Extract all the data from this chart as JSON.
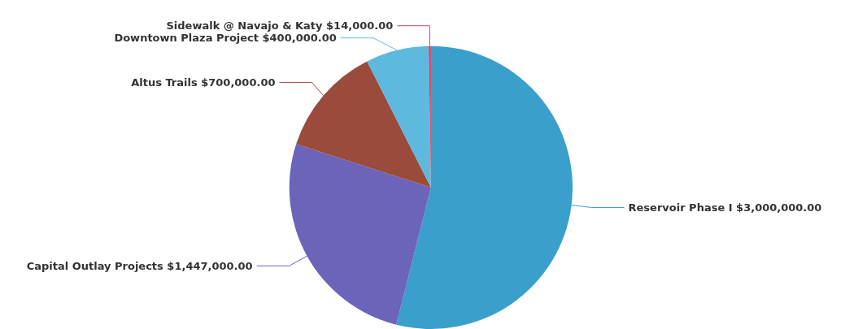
{
  "chart_data": {
    "type": "pie",
    "categories": [
      "Reservoir Phase I",
      "Capital Outlay Projects",
      "Altus Trails",
      "Downtown Plaza Project",
      "Sidewalk @ Navajo & Katy"
    ],
    "values": [
      3000000,
      1447000,
      700000,
      400000,
      14000
    ],
    "value_labels": [
      "$3,000,000.00",
      "$1,447,000.00",
      "$700,000.00",
      "$400,000.00",
      "$14,000.00"
    ],
    "colors": [
      "#3a9fcb",
      "#6b64b8",
      "#9b4b3c",
      "#5db9de",
      "#d8415f"
    ]
  }
}
